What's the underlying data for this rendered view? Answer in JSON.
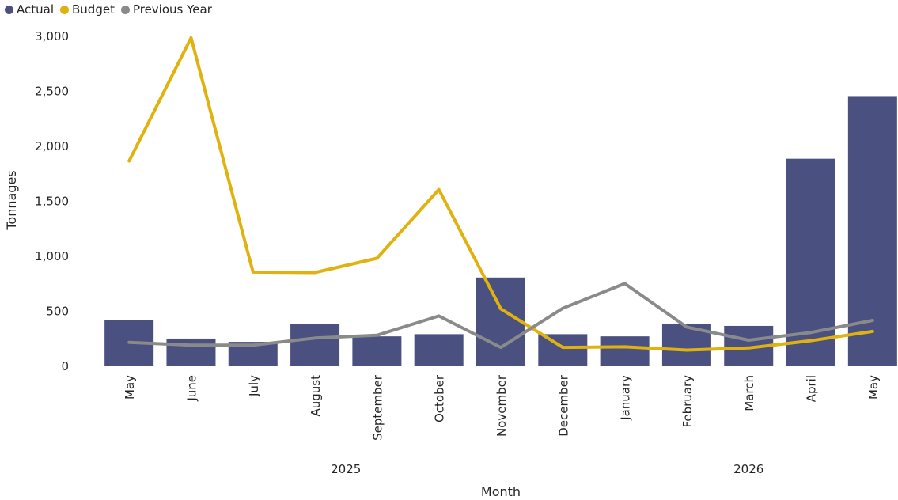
{
  "legend": {
    "items": [
      {
        "label": "Actual",
        "color": "#4a5080"
      },
      {
        "label": "Budget",
        "color": "#e0b20f"
      },
      {
        "label": "Previous Year",
        "color": "#8a8a8a"
      }
    ]
  },
  "chart_data": {
    "type": "bar",
    "categories": [
      "May",
      "June",
      "July",
      "August",
      "September",
      "October",
      "November",
      "December",
      "January",
      "February",
      "March",
      "April",
      "May"
    ],
    "x_groups": [
      {
        "label": "2025",
        "from": 0,
        "to": 7
      },
      {
        "label": "2026",
        "from": 8,
        "to": 12
      }
    ],
    "series": [
      {
        "name": "Actual",
        "type": "bar",
        "color": "#4a5080",
        "values": [
          410,
          245,
          215,
          380,
          265,
          285,
          800,
          285,
          265,
          375,
          360,
          1880,
          2450
        ]
      },
      {
        "name": "Budget",
        "type": "line",
        "color": "#e0b20f",
        "values": [
          1860,
          2980,
          850,
          845,
          975,
          1600,
          515,
          165,
          170,
          140,
          160,
          225,
          310
        ]
      },
      {
        "name": "Previous Year",
        "type": "line",
        "color": "#8a8a8a",
        "values": [
          210,
          185,
          185,
          250,
          275,
          450,
          165,
          520,
          745,
          350,
          230,
          300,
          410
        ]
      }
    ],
    "yticks": [
      "0",
      "500",
      "1,000",
      "1,500",
      "2,000",
      "2,500",
      "3,000"
    ],
    "ylim": [
      0,
      3000
    ],
    "xlabel": "Month",
    "ylabel": "Tonnages",
    "legend_position": "top-left",
    "grid": false
  }
}
